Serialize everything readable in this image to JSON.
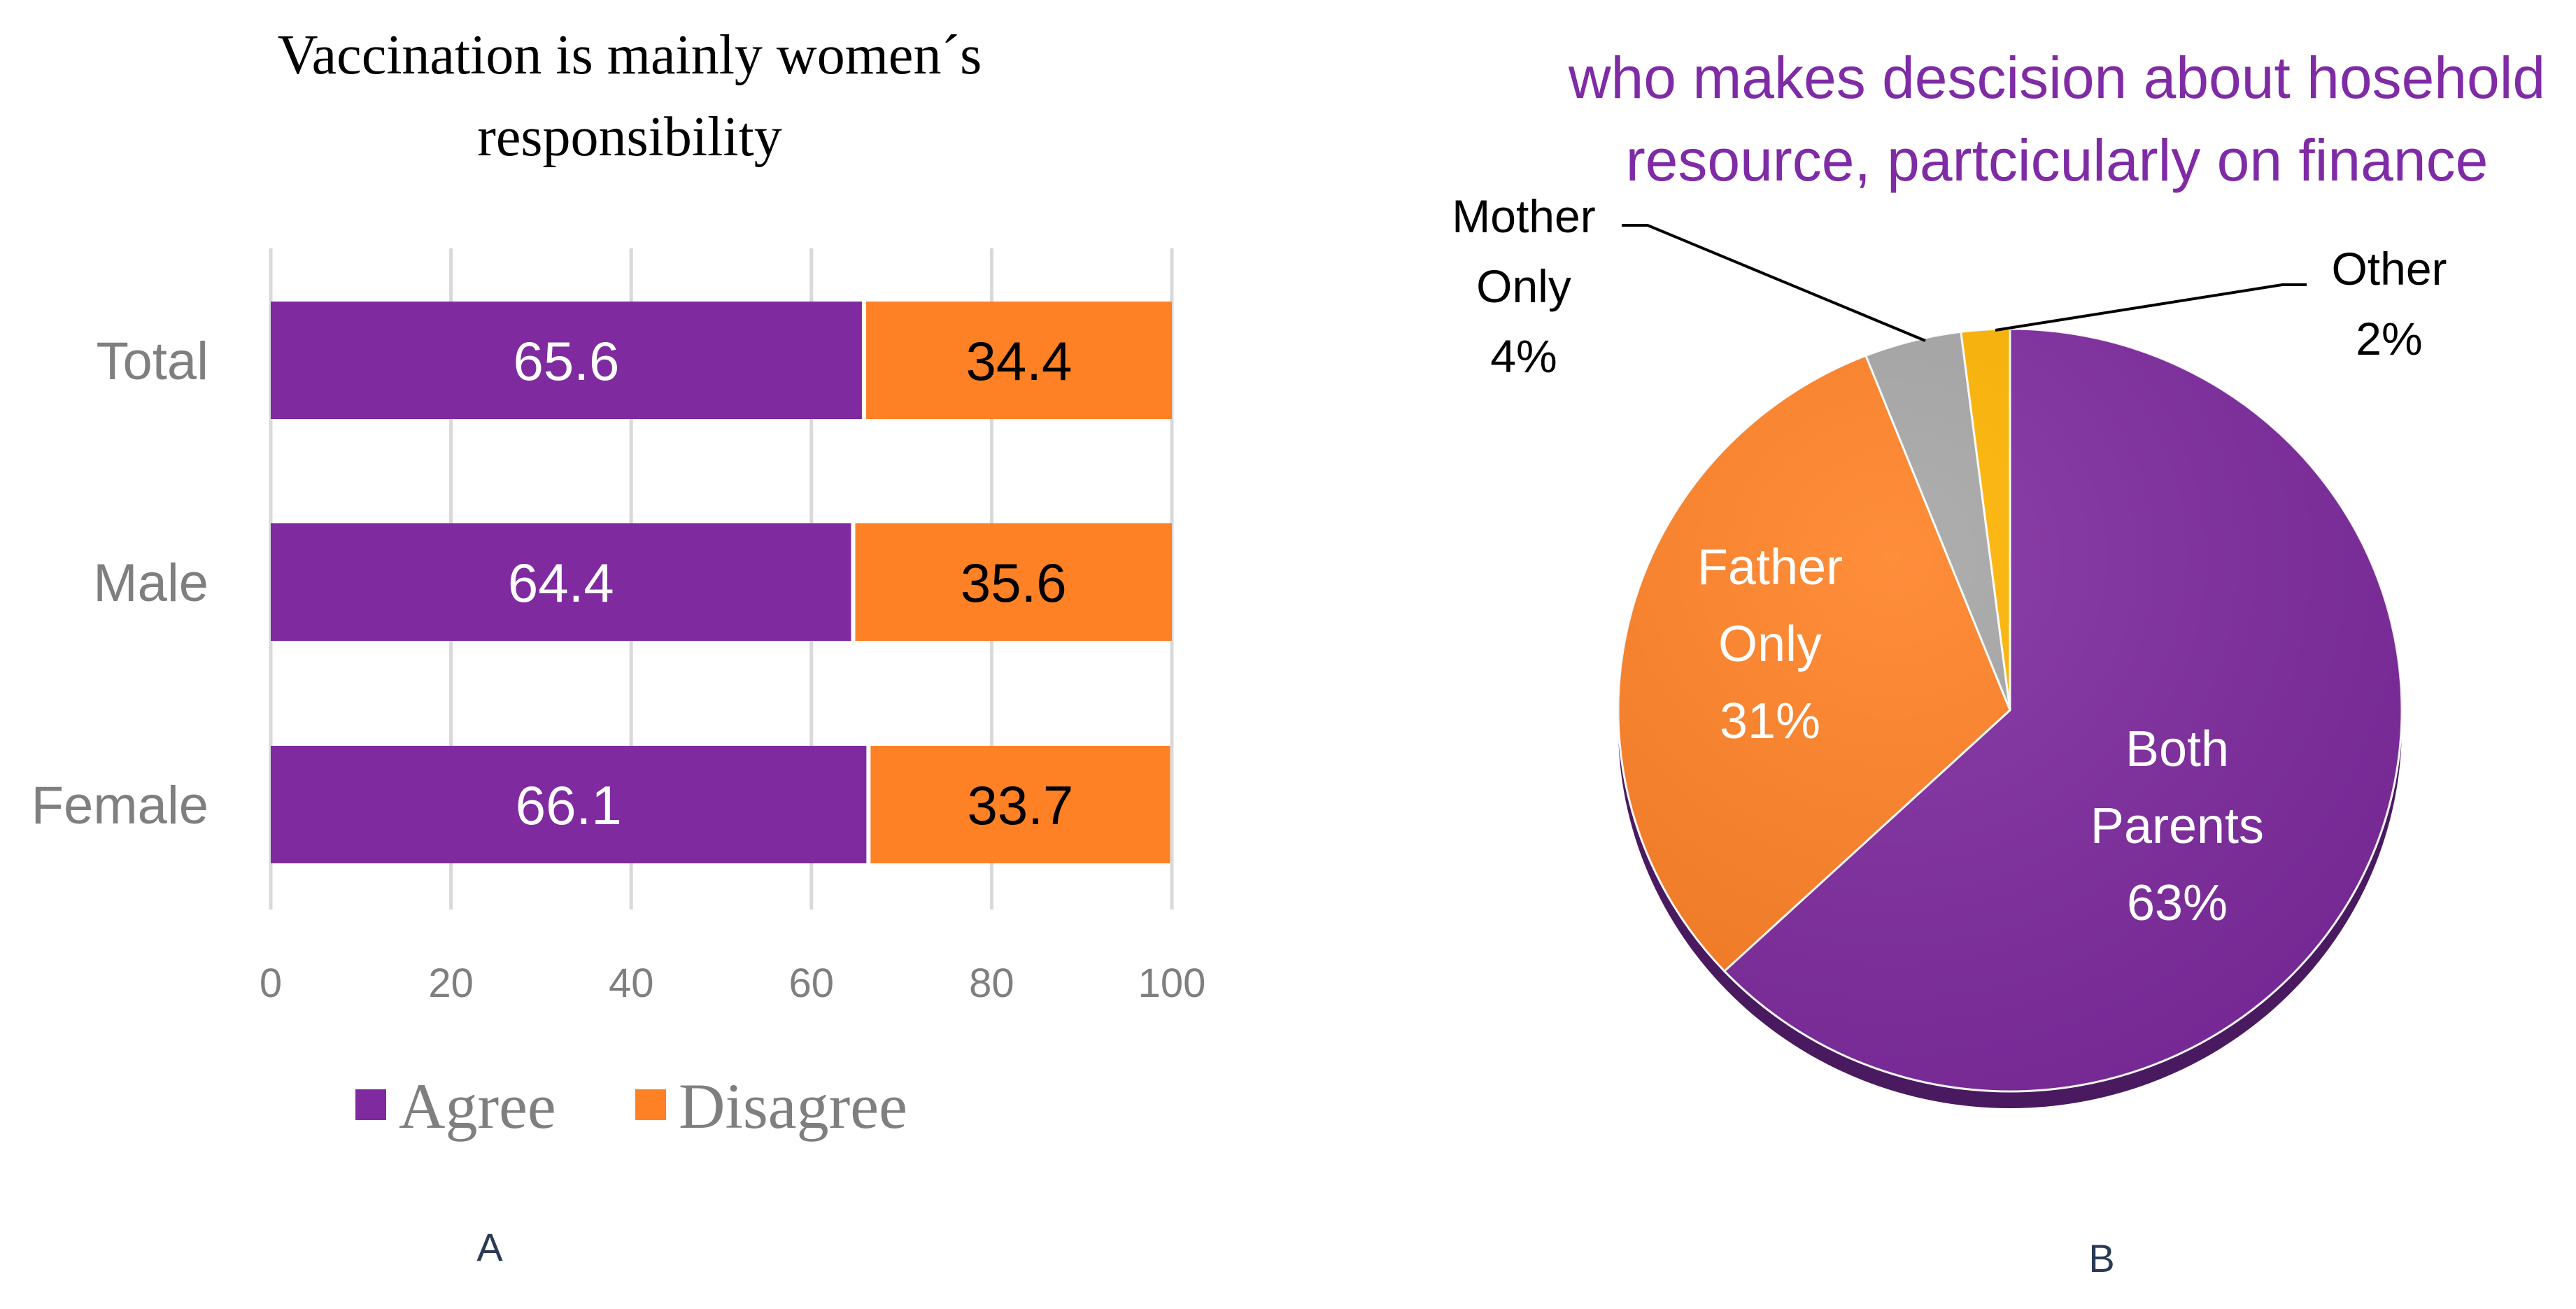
{
  "chart_data": [
    {
      "type": "bar",
      "orientation": "horizontal",
      "stacked": true,
      "title_lines": [
        "Vaccination is mainly women´s",
        "responsibility"
      ],
      "categories": [
        "Total",
        "Male",
        "Female"
      ],
      "series": [
        {
          "name": "Agree",
          "color": "#7F2B9F",
          "values": [
            65.6,
            64.4,
            66.1
          ],
          "labels": [
            "65.6",
            "64.4",
            "66.1"
          ],
          "label_color": "#ffffff"
        },
        {
          "name": "Disagree",
          "color": "#FF8125",
          "values": [
            34.4,
            35.6,
            33.7
          ],
          "labels": [
            "34.4",
            "35.6",
            "33.7"
          ],
          "label_color": "#000000"
        }
      ],
      "xlim": [
        0,
        100
      ],
      "xticks": [
        "0",
        "20",
        "40",
        "60",
        "80",
        "100"
      ],
      "grid": "vertical",
      "legend": "bottom",
      "panel_label": "A"
    },
    {
      "type": "pie",
      "title_lines": [
        "who makes descision about hosehold",
        "resource, partcicularly on finance"
      ],
      "title_color": "#7F2BA5",
      "slices": [
        {
          "name_lines": [
            "Both",
            "Parents"
          ],
          "pct_label": "63%",
          "value": 63,
          "color": "#7F2B9F",
          "label_color": "#ffffff"
        },
        {
          "name_lines": [
            "Father",
            "Only"
          ],
          "pct_label": "31%",
          "value": 31,
          "color": "#FF8125",
          "label_color": "#ffffff"
        },
        {
          "name_lines": [
            "Mother",
            "Only"
          ],
          "pct_label": "4%",
          "value": 4,
          "color": "#A6A6A6",
          "label_color": "#000000"
        },
        {
          "name_lines": [
            "Other"
          ],
          "pct_label": "2%",
          "value": 2,
          "color": "#FFB400",
          "label_color": "#000000"
        }
      ],
      "panel_label": "B"
    }
  ]
}
